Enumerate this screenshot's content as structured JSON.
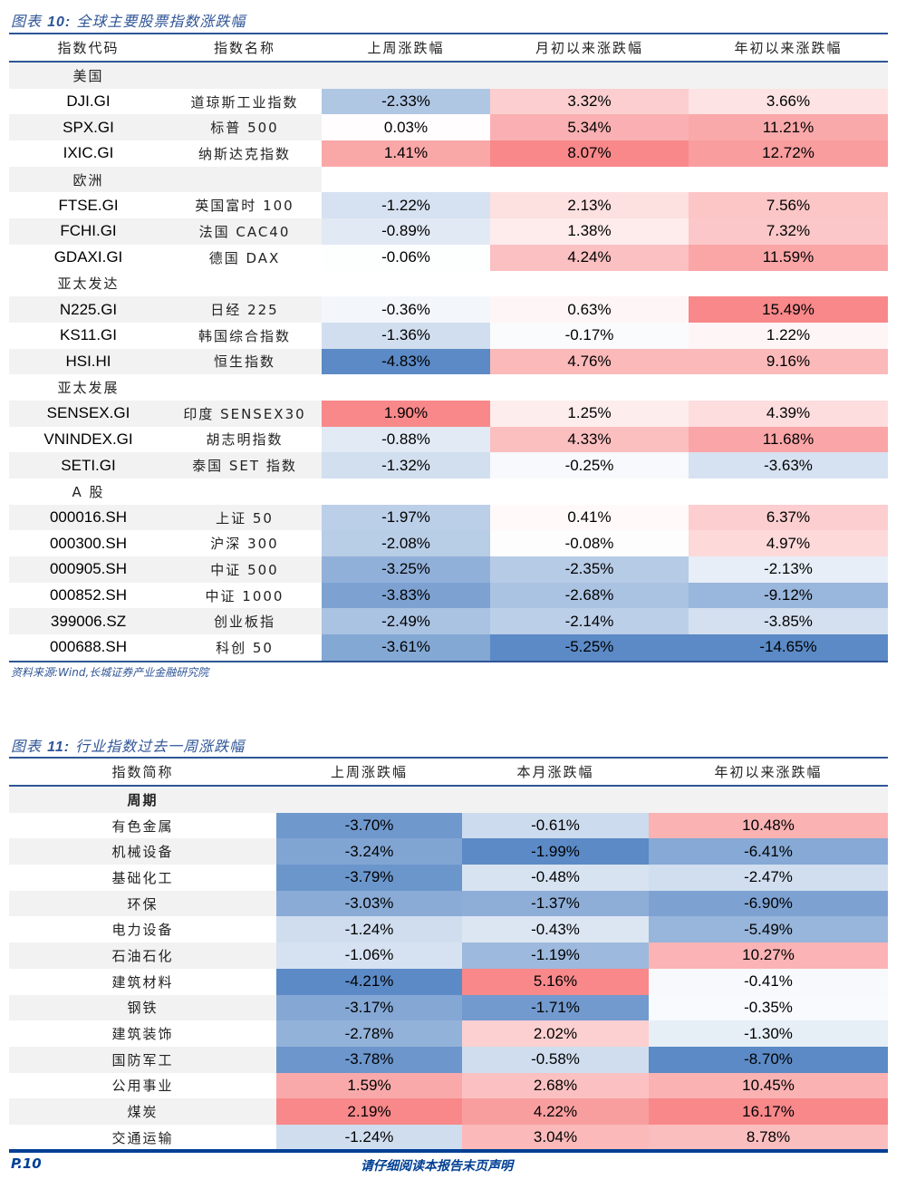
{
  "colors": {
    "brand": "#2f5597",
    "footer": "#003f94",
    "neg": "#5b8ac6",
    "pos": "#f8888a",
    "stripe": "#f2f2f2"
  },
  "table1": {
    "title_prefix": "图表",
    "title_num": "10:",
    "title_text": "全球主要股票指数涨跌幅",
    "headers": [
      "指数代码",
      "指数名称",
      "上周涨跌幅",
      "月初以来涨跌幅",
      "年初以来涨跌幅"
    ],
    "rows": [
      {
        "type": "region",
        "label": "美国",
        "gray": "full"
      },
      {
        "code": "DJI.GI",
        "name": "道琼斯工业指数",
        "v": [
          "-2.33%",
          "3.32%",
          "3.66%"
        ],
        "gray": "no"
      },
      {
        "code": "SPX.GI",
        "name": "标普 500",
        "v": [
          "0.03%",
          "5.34%",
          "11.21%"
        ],
        "gray": "yes"
      },
      {
        "code": "IXIC.GI",
        "name": "纳斯达克指数",
        "v": [
          "1.41%",
          "8.07%",
          "12.72%"
        ],
        "gray": "no"
      },
      {
        "type": "region",
        "label": "欧洲",
        "gray": "left"
      },
      {
        "code": "FTSE.GI",
        "name": "英国富时 100",
        "v": [
          "-1.22%",
          "2.13%",
          "7.56%"
        ],
        "gray": "no"
      },
      {
        "code": "FCHI.GI",
        "name": "法国 CAC40",
        "v": [
          "-0.89%",
          "1.38%",
          "7.32%"
        ],
        "gray": "yes"
      },
      {
        "code": "GDAXI.GI",
        "name": "德国 DAX",
        "v": [
          "-0.06%",
          "4.24%",
          "11.59%"
        ],
        "gray": "no"
      },
      {
        "type": "region",
        "label": "亚太发达",
        "gray": "no"
      },
      {
        "code": "N225.GI",
        "name": "日经 225",
        "v": [
          "-0.36%",
          "0.63%",
          "15.49%"
        ],
        "gray": "yes"
      },
      {
        "code": "KS11.GI",
        "name": "韩国综合指数",
        "v": [
          "-1.36%",
          "-0.17%",
          "1.22%"
        ],
        "gray": "no"
      },
      {
        "code": "HSI.HI",
        "name": "恒生指数",
        "v": [
          "-4.83%",
          "4.76%",
          "9.16%"
        ],
        "gray": "yes"
      },
      {
        "type": "region",
        "label": "亚太发展",
        "gray": "no"
      },
      {
        "code": "SENSEX.GI",
        "name": "印度 SENSEX30",
        "v": [
          "1.90%",
          "1.25%",
          "4.39%"
        ],
        "gray": "yes"
      },
      {
        "code": "VNINDEX.GI",
        "name": "胡志明指数",
        "v": [
          "-0.88%",
          "4.33%",
          "11.68%"
        ],
        "gray": "no"
      },
      {
        "code": "SETI.GI",
        "name": "泰国 SET 指数",
        "v": [
          "-1.32%",
          "-0.25%",
          "-3.63%"
        ],
        "gray": "yes"
      },
      {
        "type": "region",
        "label": "A 股",
        "gray": "no"
      },
      {
        "code": "000016.SH",
        "name": "上证 50",
        "v": [
          "-1.97%",
          "0.41%",
          "6.37%"
        ],
        "gray": "yes"
      },
      {
        "code": "000300.SH",
        "name": "沪深 300",
        "v": [
          "-2.08%",
          "-0.08%",
          "4.97%"
        ],
        "gray": "no"
      },
      {
        "code": "000905.SH",
        "name": "中证 500",
        "v": [
          "-3.25%",
          "-2.35%",
          "-2.13%"
        ],
        "gray": "yes"
      },
      {
        "code": "000852.SH",
        "name": "中证 1000",
        "v": [
          "-3.83%",
          "-2.68%",
          "-9.12%"
        ],
        "gray": "no"
      },
      {
        "code": "399006.SZ",
        "name": "创业板指",
        "v": [
          "-2.49%",
          "-2.14%",
          "-3.85%"
        ],
        "gray": "yes"
      },
      {
        "code": "000688.SH",
        "name": "科创 50",
        "v": [
          "-3.61%",
          "-5.25%",
          "-14.65%"
        ],
        "gray": "no"
      }
    ],
    "source": "资料来源:Wind,长城证券产业金融研究院"
  },
  "table2": {
    "title_prefix": "图表",
    "title_num": "11:",
    "title_text": "行业指数过去一周涨跌幅",
    "headers": [
      "指数简称",
      "上周涨跌幅",
      "本月涨跌幅",
      "年初以来涨跌幅"
    ],
    "group": "周期",
    "rows": [
      {
        "name": "有色金属",
        "v": [
          "-3.70%",
          "-0.61%",
          "10.48%"
        ],
        "gray": "no"
      },
      {
        "name": "机械设备",
        "v": [
          "-3.24%",
          "-1.99%",
          "-6.41%"
        ],
        "gray": "yes"
      },
      {
        "name": "基础化工",
        "v": [
          "-3.79%",
          "-0.48%",
          "-2.47%"
        ],
        "gray": "no"
      },
      {
        "name": "环保",
        "v": [
          "-3.03%",
          "-1.37%",
          "-6.90%"
        ],
        "gray": "yes"
      },
      {
        "name": "电力设备",
        "v": [
          "-1.24%",
          "-0.43%",
          "-5.49%"
        ],
        "gray": "no"
      },
      {
        "name": "石油石化",
        "v": [
          "-1.06%",
          "-1.19%",
          "10.27%"
        ],
        "gray": "yes"
      },
      {
        "name": "建筑材料",
        "v": [
          "-4.21%",
          "5.16%",
          "-0.41%"
        ],
        "gray": "no"
      },
      {
        "name": "钢铁",
        "v": [
          "-3.17%",
          "-1.71%",
          "-0.35%"
        ],
        "gray": "yes"
      },
      {
        "name": "建筑装饰",
        "v": [
          "-2.78%",
          "2.02%",
          "-1.30%"
        ],
        "gray": "no"
      },
      {
        "name": "国防军工",
        "v": [
          "-3.78%",
          "-0.58%",
          "-8.70%"
        ],
        "gray": "yes"
      },
      {
        "name": "公用事业",
        "v": [
          "1.59%",
          "2.68%",
          "10.45%"
        ],
        "gray": "no"
      },
      {
        "name": "煤炭",
        "v": [
          "2.19%",
          "4.22%",
          "16.17%"
        ],
        "gray": "yes"
      },
      {
        "name": "交通运输",
        "v": [
          "-1.24%",
          "3.04%",
          "8.78%"
        ],
        "gray": "no"
      }
    ]
  },
  "footer": {
    "page": "P.10",
    "note": "请仔细阅读本报告末页声明"
  }
}
